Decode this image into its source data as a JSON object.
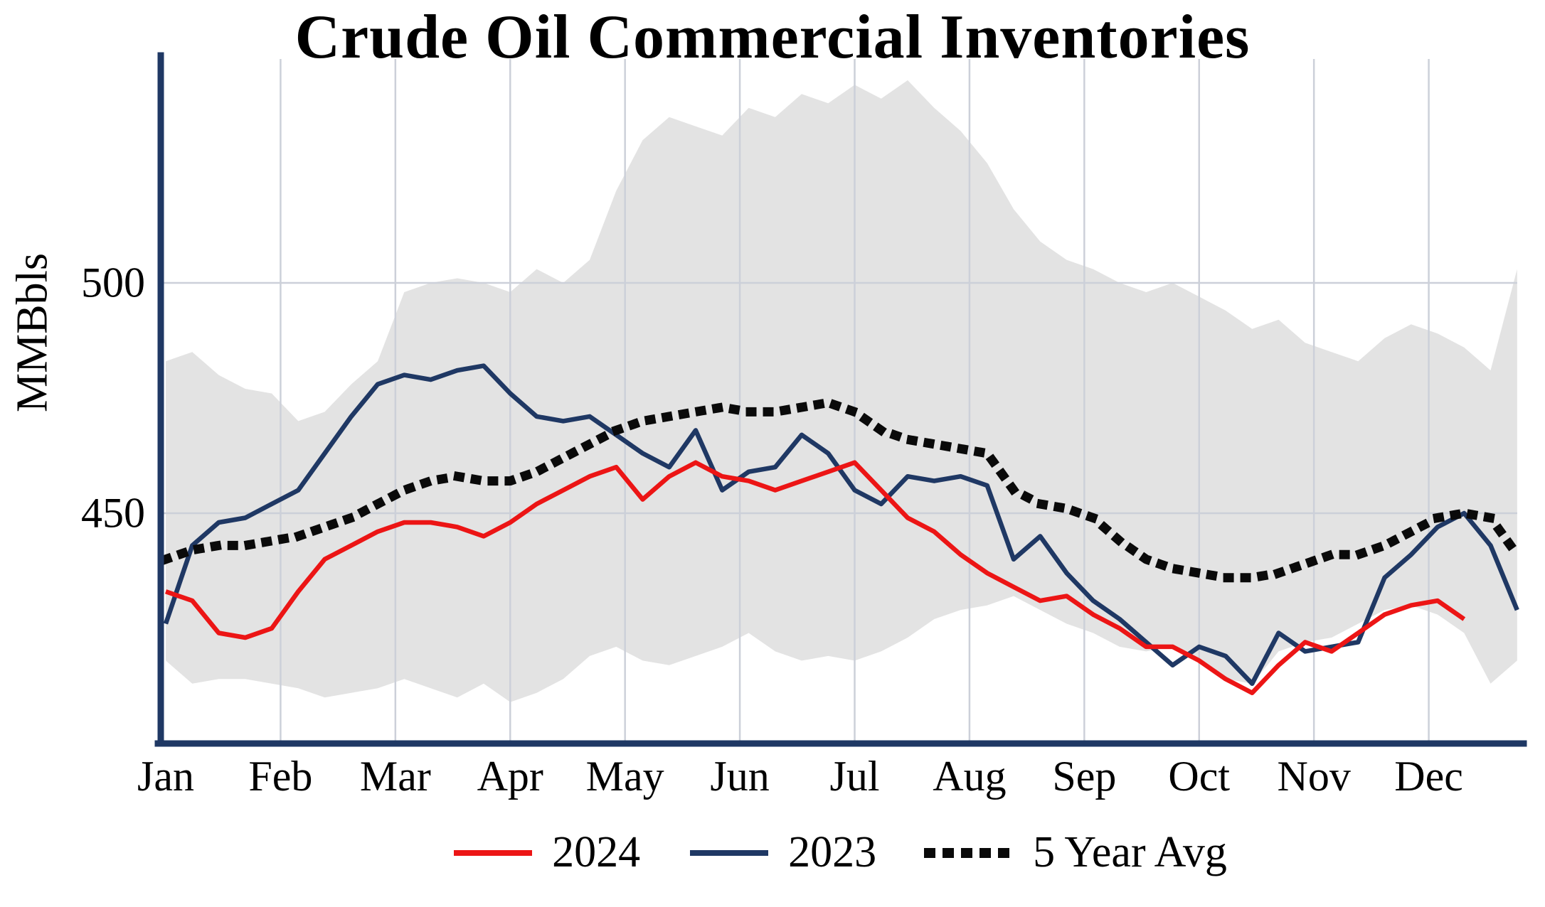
{
  "title": "Crude Oil Commercial Inventories",
  "chart_data": {
    "type": "line",
    "title": "Crude Oil Commercial Inventories",
    "xlabel": "",
    "ylabel": "MMBbls",
    "yticks": [
      500,
      450
    ],
    "ylim": [
      400,
      549
    ],
    "x_mode": "weekly",
    "months": [
      "Jan",
      "Feb",
      "Mar",
      "Apr",
      "May",
      "Jun",
      "Jul",
      "Aug",
      "Sep",
      "Oct",
      "Nov",
      "Dec"
    ],
    "grid": true,
    "legend_position": "bottom",
    "axis_color": "#1f3864",
    "grid_color": "#ccd0d9",
    "band": {
      "name": "5-year range",
      "fill": "#e3e3e3",
      "upper": [
        483,
        485,
        480,
        477,
        476,
        470,
        472,
        478,
        483,
        498,
        500,
        501,
        500,
        498,
        503,
        500,
        505,
        520,
        531,
        536,
        534,
        532,
        538,
        536,
        541,
        539,
        543,
        540,
        544,
        538,
        533,
        526,
        516,
        509,
        505,
        503,
        500,
        498,
        500,
        497,
        494,
        490,
        492,
        487,
        485,
        483,
        488,
        491,
        489,
        486,
        481,
        503
      ],
      "lower": [
        418,
        413,
        414,
        414,
        413,
        412,
        410,
        411,
        412,
        414,
        412,
        410,
        413,
        409,
        411,
        414,
        419,
        421,
        418,
        417,
        419,
        421,
        424,
        420,
        418,
        419,
        418,
        420,
        423,
        427,
        429,
        430,
        432,
        429,
        426,
        424,
        421,
        420,
        421,
        418,
        414,
        413,
        420,
        422,
        423,
        426,
        429,
        430,
        428,
        424,
        413,
        418
      ]
    },
    "series": [
      {
        "name": "2024",
        "color": "#ec1515",
        "dash": "solid",
        "values": [
          433,
          431,
          424,
          423,
          425,
          433,
          440,
          443,
          446,
          448,
          448,
          447,
          445,
          448,
          452,
          455,
          458,
          460,
          453,
          458,
          461,
          458,
          457,
          455,
          457,
          459,
          461,
          455,
          449,
          446,
          441,
          437,
          434,
          431,
          432,
          428,
          425,
          421,
          421,
          418,
          414,
          411,
          417,
          422,
          420,
          424,
          428,
          430,
          431,
          427
        ]
      },
      {
        "name": "2023",
        "color": "#1f3864",
        "dash": "solid",
        "values": [
          426,
          443,
          448,
          449,
          452,
          455,
          463,
          471,
          478,
          480,
          479,
          481,
          482,
          476,
          471,
          470,
          471,
          467,
          463,
          460,
          468,
          455,
          459,
          460,
          467,
          463,
          455,
          452,
          458,
          457,
          458,
          456,
          440,
          445,
          437,
          431,
          427,
          422,
          417,
          421,
          419,
          413,
          424,
          420,
          421,
          422,
          436,
          441,
          447,
          450,
          443,
          429
        ]
      },
      {
        "name": "5 Year Avg",
        "color": "#0a0a0a",
        "dash": "dotted",
        "values": [
          440,
          442,
          443,
          443,
          444,
          445,
          447,
          449,
          452,
          455,
          457,
          458,
          457,
          457,
          459,
          462,
          465,
          468,
          470,
          471,
          472,
          473,
          472,
          472,
          473,
          474,
          472,
          468,
          466,
          465,
          464,
          463,
          455,
          452,
          451,
          449,
          444,
          440,
          438,
          437,
          436,
          436,
          437,
          439,
          441,
          441,
          443,
          446,
          449,
          450,
          449,
          441
        ]
      }
    ]
  }
}
